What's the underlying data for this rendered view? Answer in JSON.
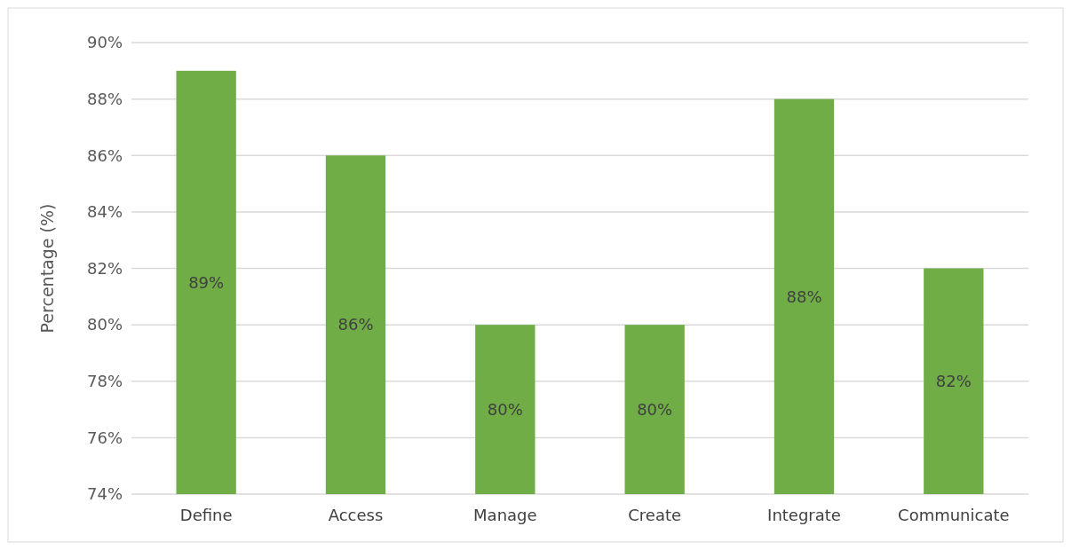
{
  "chart_data": {
    "type": "bar",
    "ylabel": "Percentage (%)",
    "categories": [
      "Define",
      "Access",
      "Manage",
      "Create",
      "Integrate",
      "Communicate"
    ],
    "values": [
      89,
      86,
      80,
      80,
      88,
      82
    ],
    "value_labels": [
      "89%",
      "86%",
      "80%",
      "80%",
      "88%",
      "82%"
    ],
    "color": "#70ad47",
    "ylim": [
      74,
      90
    ],
    "yticks": [
      {
        "value": 74,
        "label": "74%"
      },
      {
        "value": 76,
        "label": "76%"
      },
      {
        "value": 78,
        "label": "78%"
      },
      {
        "value": 80,
        "label": "80%"
      },
      {
        "value": 82,
        "label": "82%"
      },
      {
        "value": 84,
        "label": "84%"
      },
      {
        "value": 86,
        "label": "86%"
      },
      {
        "value": 88,
        "label": "88%"
      },
      {
        "value": 90,
        "label": "90%"
      }
    ],
    "grid": "y"
  }
}
